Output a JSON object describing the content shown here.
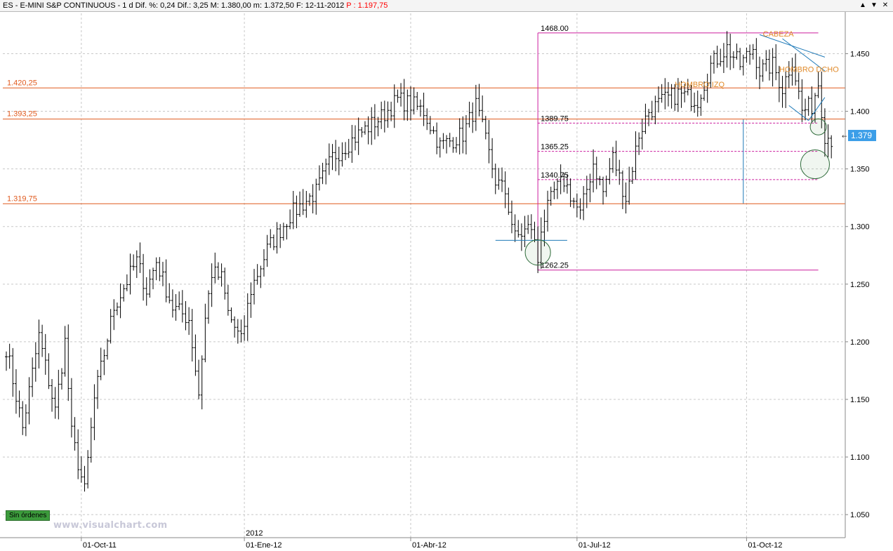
{
  "window": {
    "title": "ES - E-MINI S&P CONTINUOUS - 1 d Dif. %: 0,24 Dif.: 3,25 M: 1.380,00 m: 1.372,50 F: 12-11-2012",
    "price_label": "P : 1.197,75",
    "buttons": [
      "▲",
      "▼",
      "✕"
    ]
  },
  "orders_label": "Sin órdenes",
  "watermark": "www.visualchart.com",
  "colors": {
    "candles": "#000000",
    "horizontal_levels": "#e05a1e",
    "fibonacci_box": "#cc1f9e",
    "trendlines": "#1f7ab8",
    "annotation_text": "#e08a2a",
    "circles": "#2e6b3a",
    "last_price_badge": "#3b9ee8",
    "grid": "#c8c8c8"
  },
  "chart_data": {
    "type": "ohlc",
    "symbol": "ES",
    "interval": "1 d",
    "ylim": [
      1.03,
      1.485
    ],
    "y_ticks": [
      "1.450",
      "1.400",
      "1.350",
      "1.300",
      "1.250",
      "1.200",
      "1.150",
      "1.100",
      "1.050"
    ],
    "y_tick_values": [
      1.45,
      1.4,
      1.35,
      1.3,
      1.25,
      1.2,
      1.15,
      1.1,
      1.05
    ],
    "x_labels": [
      "01-Oct-11",
      "01-Ene-12",
      "01-Abr-12",
      "01-Jul-12",
      "01-Oct-12"
    ],
    "x_label_index": [
      23,
      73,
      124,
      175,
      227
    ],
    "year_marker": {
      "label": "2012",
      "index": 73
    },
    "grid": true,
    "last_price_label": "1.379",
    "last_price": 1.379,
    "waypoints": [
      [
        0,
        1.195
      ],
      [
        5,
        1.125
      ],
      [
        10,
        1.205
      ],
      [
        15,
        1.14
      ],
      [
        18,
        1.2
      ],
      [
        20,
        1.12
      ],
      [
        24,
        1.07
      ],
      [
        27,
        1.15
      ],
      [
        33,
        1.23
      ],
      [
        40,
        1.27
      ],
      [
        43,
        1.245
      ],
      [
        46,
        1.27
      ],
      [
        51,
        1.23
      ],
      [
        56,
        1.22
      ],
      [
        59,
        1.155
      ],
      [
        61,
        1.22
      ],
      [
        63,
        1.26
      ],
      [
        66,
        1.255
      ],
      [
        68,
        1.225
      ],
      [
        72,
        1.2
      ],
      [
        75,
        1.245
      ],
      [
        80,
        1.28
      ],
      [
        87,
        1.31
      ],
      [
        95,
        1.33
      ],
      [
        100,
        1.36
      ],
      [
        108,
        1.38
      ],
      [
        115,
        1.395
      ],
      [
        120,
        1.41
      ],
      [
        125,
        1.405
      ],
      [
        128,
        1.4
      ],
      [
        133,
        1.37
      ],
      [
        140,
        1.38
      ],
      [
        144,
        1.405
      ],
      [
        146,
        1.385
      ],
      [
        150,
        1.34
      ],
      [
        153,
        1.33
      ],
      [
        156,
        1.29
      ],
      [
        161,
        1.3
      ],
      [
        163,
        1.27
      ],
      [
        164,
        1.3
      ],
      [
        168,
        1.33
      ],
      [
        171,
        1.34
      ],
      [
        176,
        1.31
      ],
      [
        180,
        1.355
      ],
      [
        183,
        1.33
      ],
      [
        186,
        1.36
      ],
      [
        190,
        1.325
      ],
      [
        194,
        1.38
      ],
      [
        197,
        1.4
      ],
      [
        202,
        1.41
      ],
      [
        206,
        1.415
      ],
      [
        212,
        1.41
      ],
      [
        216,
        1.44
      ],
      [
        221,
        1.455
      ],
      [
        225,
        1.44
      ],
      [
        229,
        1.455
      ],
      [
        231,
        1.435
      ],
      [
        235,
        1.44
      ],
      [
        238,
        1.42
      ],
      [
        241,
        1.445
      ],
      [
        244,
        1.4
      ],
      [
        247,
        1.405
      ],
      [
        249,
        1.425
      ],
      [
        251,
        1.38
      ],
      [
        253,
        1.376
      ]
    ],
    "horizontal_levels": [
      {
        "label": "1.420,25",
        "value": 1.42025
      },
      {
        "label": "1.393,25",
        "value": 1.39325
      },
      {
        "label": "1.319,75",
        "value": 1.31975
      }
    ],
    "fibonacci": {
      "high": 1.468,
      "low": 1.26225,
      "start_index": 163,
      "end_index": 249,
      "labels": [
        {
          "label": "1468.00",
          "value": 1.468
        },
        {
          "label": "1389.75",
          "value": 1.38975
        },
        {
          "label": "1365.25",
          "value": 1.36525
        },
        {
          "label": "1340.75",
          "value": 1.34075
        },
        {
          "label": "1262.25",
          "value": 1.26225
        }
      ]
    },
    "annotations": [
      {
        "label": "CABEZA",
        "index": 232,
        "value": 1.465
      },
      {
        "label": "HOMBRO DCHO",
        "index": 237,
        "value": 1.434
      },
      {
        "label": "HOMBRO IZQ",
        "index": 205,
        "value": 1.421
      }
    ],
    "trendlines": [
      {
        "from": [
          231,
          1.4665
        ],
        "to": [
          251,
          1.447
        ]
      },
      {
        "from": [
          238,
          1.463
        ],
        "to": [
          251,
          1.435
        ]
      },
      {
        "from": [
          240,
          1.405
        ],
        "to": [
          246,
          1.392
        ]
      },
      {
        "from": [
          246,
          1.392
        ],
        "to": [
          251,
          1.412
        ]
      },
      {
        "from": [
          150,
          1.288
        ],
        "to": [
          172,
          1.288
        ]
      },
      {
        "from": [
          226,
          1.393
        ],
        "to": [
          226,
          1.32
        ]
      }
    ],
    "circles": [
      {
        "index": 163,
        "value": 1.2775,
        "radius_value": 0.011
      },
      {
        "index": 248,
        "value": 1.354,
        "radius_value": 0.0125
      },
      {
        "index": 249,
        "value": 1.3865,
        "radius_value": 0.007
      }
    ]
  }
}
